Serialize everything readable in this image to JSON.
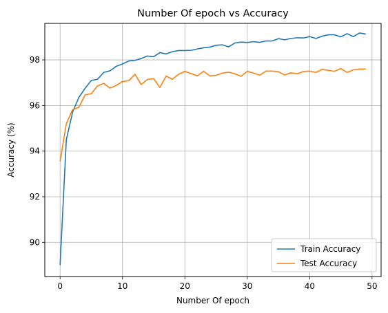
{
  "chart_data": {
    "type": "line",
    "title": "Number Of epoch vs Accuracy",
    "xlabel": "Number Of epoch",
    "ylabel": "Accuracy (%)",
    "xlim": [
      -2.45,
      51.45
    ],
    "ylim": [
      88.5,
      99.6
    ],
    "xticks": [
      0,
      10,
      20,
      30,
      40,
      50
    ],
    "yticks": [
      90,
      92,
      94,
      96,
      98
    ],
    "grid": true,
    "legend_position": "lower right",
    "x": [
      0,
      1,
      2,
      3,
      4,
      5,
      6,
      7,
      8,
      9,
      10,
      11,
      12,
      13,
      14,
      15,
      16,
      17,
      18,
      19,
      20,
      21,
      22,
      23,
      24,
      25,
      26,
      27,
      28,
      29,
      30,
      31,
      32,
      33,
      34,
      35,
      36,
      37,
      38,
      39,
      40,
      41,
      42,
      43,
      44,
      45,
      46,
      47,
      48,
      49
    ],
    "series": [
      {
        "name": "Train Accuracy",
        "color": "#1f77b4",
        "values": [
          89.0,
          94.5,
          95.7,
          96.35,
          96.75,
          97.1,
          97.15,
          97.45,
          97.52,
          97.72,
          97.82,
          97.95,
          97.98,
          98.06,
          98.17,
          98.14,
          98.32,
          98.26,
          98.36,
          98.41,
          98.41,
          98.42,
          98.48,
          98.53,
          98.56,
          98.64,
          98.66,
          98.57,
          98.74,
          98.78,
          98.76,
          98.8,
          98.77,
          98.83,
          98.83,
          98.93,
          98.88,
          98.94,
          98.97,
          98.96,
          99.02,
          98.94,
          99.04,
          99.1,
          99.1,
          99.01,
          99.15,
          99.02,
          99.18,
          99.13
        ]
      },
      {
        "name": "Test Accuracy",
        "color": "#ff7f0e",
        "values": [
          93.55,
          95.2,
          95.82,
          95.92,
          96.46,
          96.52,
          96.86,
          96.97,
          96.76,
          96.88,
          97.05,
          97.08,
          97.37,
          96.92,
          97.14,
          97.18,
          96.79,
          97.29,
          97.15,
          97.37,
          97.5,
          97.4,
          97.3,
          97.5,
          97.3,
          97.32,
          97.42,
          97.46,
          97.39,
          97.28,
          97.5,
          97.42,
          97.33,
          97.51,
          97.51,
          97.48,
          97.34,
          97.43,
          97.39,
          97.49,
          97.51,
          97.45,
          97.58,
          97.54,
          97.5,
          97.62,
          97.45,
          97.56,
          97.6,
          97.6
        ]
      }
    ]
  }
}
